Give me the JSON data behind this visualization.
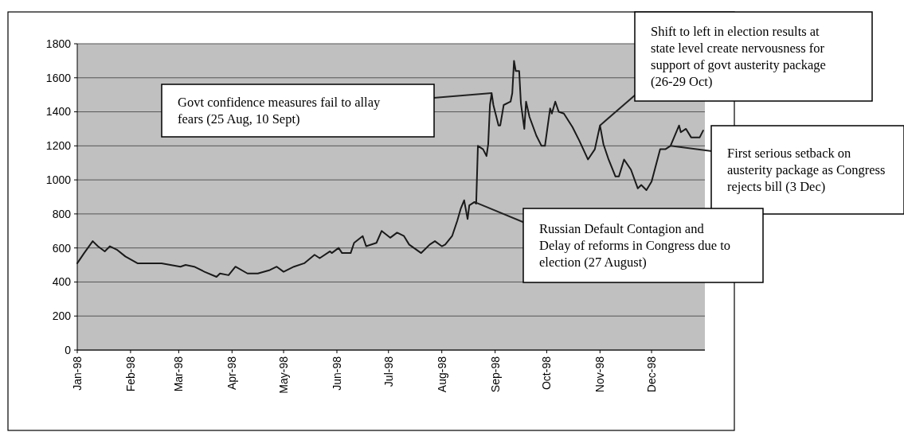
{
  "chart_data": {
    "type": "line",
    "x": [
      "1998-01-01",
      "1998-01-05",
      "1998-01-10",
      "1998-01-13",
      "1998-01-17",
      "1998-01-20",
      "1998-01-24",
      "1998-01-29",
      "1998-02-05",
      "1998-02-12",
      "1998-02-19",
      "1998-03-02",
      "1998-03-05",
      "1998-03-10",
      "1998-03-16",
      "1998-03-23",
      "1998-03-25",
      "1998-03-30",
      "1998-04-03",
      "1998-04-10",
      "1998-04-16",
      "1998-04-23",
      "1998-04-27",
      "1998-05-01",
      "1998-05-07",
      "1998-05-13",
      "1998-05-19",
      "1998-05-22",
      "1998-05-28",
      "1998-05-29",
      "1998-06-02",
      "1998-06-04",
      "1998-06-09",
      "1998-06-11",
      "1998-06-16",
      "1998-06-18",
      "1998-06-24",
      "1998-06-27",
      "1998-07-02",
      "1998-07-06",
      "1998-07-10",
      "1998-07-13",
      "1998-07-20",
      "1998-07-25",
      "1998-07-28",
      "1998-08-01",
      "1998-08-03",
      "1998-08-07",
      "1998-08-10",
      "1998-08-12",
      "1998-08-14",
      "1998-08-16",
      "1998-08-17",
      "1998-08-20",
      "1998-08-21",
      "1998-08-22",
      "1998-08-25",
      "1998-08-27",
      "1998-08-28",
      "1998-08-29",
      "1998-08-30",
      "1998-08-31",
      "1998-09-03",
      "1998-09-04",
      "1998-09-06",
      "1998-09-10",
      "1998-09-11",
      "1998-09-12",
      "1998-09-13",
      "1998-09-15",
      "1998-09-16",
      "1998-09-18",
      "1998-09-19",
      "1998-09-21",
      "1998-09-25",
      "1998-09-28",
      "1998-09-30",
      "1998-10-03",
      "1998-10-04",
      "1998-10-06",
      "1998-10-08",
      "1998-10-11",
      "1998-10-16",
      "1998-10-20",
      "1998-10-25",
      "1998-10-29",
      "1998-11-01",
      "1998-11-03",
      "1998-11-06",
      "1998-11-10",
      "1998-11-12",
      "1998-11-15",
      "1998-11-19",
      "1998-11-23",
      "1998-11-25",
      "1998-11-28",
      "1998-12-01",
      "1998-12-06",
      "1998-12-09",
      "1998-12-12",
      "1998-12-17",
      "1998-12-18",
      "1998-12-21",
      "1998-12-24",
      "1998-12-29",
      "1998-12-31"
    ],
    "series": [
      {
        "color": "#1a1a1a",
        "values": [
          510,
          570,
          640,
          610,
          580,
          610,
          590,
          550,
          510,
          510,
          510,
          490,
          500,
          490,
          460,
          430,
          450,
          440,
          490,
          450,
          450,
          470,
          490,
          460,
          490,
          510,
          560,
          540,
          580,
          570,
          600,
          570,
          570,
          630,
          670,
          610,
          630,
          700,
          660,
          690,
          670,
          620,
          570,
          620,
          640,
          610,
          620,
          670,
          760,
          830,
          880,
          770,
          850,
          870,
          860,
          1200,
          1180,
          1140,
          1210,
          1440,
          1510,
          1440,
          1320,
          1320,
          1440,
          1460,
          1510,
          1700,
          1640,
          1640,
          1450,
          1300,
          1460,
          1370,
          1260,
          1200,
          1200,
          1420,
          1390,
          1460,
          1400,
          1390,
          1310,
          1230,
          1120,
          1180,
          1320,
          1210,
          1120,
          1020,
          1020,
          1120,
          1060,
          950,
          970,
          940,
          990,
          1180,
          1180,
          1200,
          1320,
          1280,
          1300,
          1250,
          1250,
          1290
        ]
      }
    ],
    "xlim": [
      "1998-01-01",
      "1999-01-01"
    ],
    "xticks": [
      {
        "value": "1998-01-01",
        "label": "Jan-98"
      },
      {
        "value": "1998-02-01",
        "label": "Feb-98"
      },
      {
        "value": "1998-03-01",
        "label": "Mar-98"
      },
      {
        "value": "1998-04-01",
        "label": "Apr-98"
      },
      {
        "value": "1998-05-01",
        "label": "May-98"
      },
      {
        "value": "1998-06-01",
        "label": "Jun-98"
      },
      {
        "value": "1998-07-01",
        "label": "Jul-98"
      },
      {
        "value": "1998-08-01",
        "label": "Aug-98"
      },
      {
        "value": "1998-09-01",
        "label": "Sep-98"
      },
      {
        "value": "1998-10-01",
        "label": "Oct-98"
      },
      {
        "value": "1998-11-01",
        "label": "Nov-98"
      },
      {
        "value": "1998-12-01",
        "label": "Dec-98"
      }
    ],
    "ylim": [
      0,
      1800
    ],
    "yticks": [
      0,
      200,
      400,
      600,
      800,
      1000,
      1200,
      1400,
      1600,
      1800
    ],
    "grid": "y",
    "annotations": [
      {
        "text": "Govt confidence measures fail to allay fears (25 Aug, 10 Sept)",
        "x": "1998-08-30",
        "y": 1510
      },
      {
        "text": "Shift to left in election results at state level create nervousness for support of govt austerity package (26-29 Oct)",
        "x": "1998-11-01",
        "y": 1320
      },
      {
        "text": "First serious setback on austerity package as Congress rejects bill (3 Dec)",
        "x": "1998-12-12",
        "y": 1200
      },
      {
        "text": "Russian Default Contagion and Delay of reforms in Congress due to election (27 August)",
        "x": "1998-08-20",
        "y": 870
      }
    ]
  }
}
